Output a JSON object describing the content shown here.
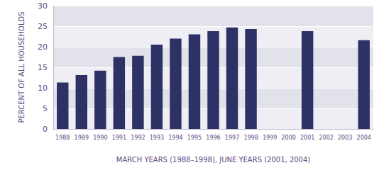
{
  "chart_data": {
    "type": "bar",
    "x_label": "MARCH YEARS (1988–1998), JUNE YEARS (2001, 2004)",
    "y_label": "PERCENT OF ALL HOUSEHOLDS",
    "categories": [
      "1988",
      "1989",
      "1990",
      "1991",
      "1992",
      "1993",
      "1994",
      "1995",
      "1996",
      "1997",
      "1998",
      "1999",
      "2000",
      "2001",
      "2002",
      "2003",
      "2004"
    ],
    "values": [
      11.3,
      13.1,
      14.2,
      17.5,
      17.8,
      20.5,
      22.0,
      23.0,
      23.8,
      24.7,
      24.3,
      null,
      null,
      23.8,
      null,
      null,
      21.6
    ],
    "color": "#2e3165",
    "ylim": [
      0,
      30
    ],
    "yticks": [
      0,
      5,
      10,
      15,
      20,
      25,
      30
    ],
    "grid": true
  }
}
